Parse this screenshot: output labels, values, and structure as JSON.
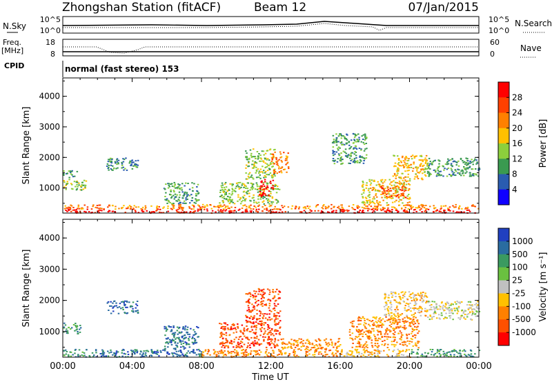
{
  "header": {
    "title": "Zhongshan Station (fitACF)",
    "beam": "Beam 12",
    "date": "07/Jan/2015"
  },
  "panels": {
    "nsky_label": "N.Sky",
    "nsearch_label": "N.Search",
    "freq_label_1": "Freq.",
    "freq_label_2": "[MHz]",
    "nave_label": "Nave",
    "cpid_label": "CPID",
    "cpid_text": "normal (fast stereo) 153",
    "nsky_ticks": [
      "10^5",
      "10^0"
    ],
    "nsearch_ticks": [
      "10^5",
      "10^0"
    ],
    "freq_ticks": [
      "18",
      "8"
    ],
    "nave_ticks": [
      "60",
      "0"
    ]
  },
  "colorbars": {
    "power": {
      "label": "Power [dB]",
      "ticks": [
        "28",
        "24",
        "20",
        "16",
        "12",
        "8",
        "4"
      ],
      "colors": [
        "#ff0000",
        "#ff4000",
        "#ff8000",
        "#ffc000",
        "#8ccf3c",
        "#3a9a50",
        "#2a5cb0",
        "#1000ff"
      ]
    },
    "velocity": {
      "label": "Velocity [m s⁻¹]",
      "ticks": [
        "1000",
        "500",
        "100",
        "25",
        "-25",
        "-100",
        "-500",
        "-1000"
      ],
      "colors": [
        "#2040c0",
        "#2a6ca0",
        "#3a9a60",
        "#6ac040",
        "#c0c0c0",
        "#ffc000",
        "#ff8000",
        "#ff5000",
        "#ff0000"
      ]
    }
  },
  "chart_data": [
    {
      "type": "heatmap",
      "name": "power",
      "ylabel": "Slant Range [km]",
      "xlabel": "Time UT",
      "x_ticks": [
        "00:00",
        "04:00",
        "08:00",
        "12:00",
        "16:00",
        "20:00",
        "00:00"
      ],
      "x_range_hours": [
        0,
        24
      ],
      "y_ticks": [
        1000,
        2000,
        3000,
        4000
      ],
      "y_range_km": [
        180,
        4600
      ],
      "regions": [
        {
          "t0": 0.0,
          "t1": 24.0,
          "r0": 200,
          "r1": 330,
          "level": 7
        },
        {
          "t0": 0.0,
          "t1": 24.0,
          "r0": 330,
          "r1": 480,
          "level": 5
        },
        {
          "t0": 0.0,
          "t1": 1.3,
          "r0": 950,
          "r1": 1300,
          "level": 3
        },
        {
          "t0": 0.0,
          "t1": 0.8,
          "r0": 1350,
          "r1": 1600,
          "level": 2
        },
        {
          "t0": 2.5,
          "t1": 4.3,
          "r0": 1600,
          "r1": 2000,
          "level": 2
        },
        {
          "t0": 5.8,
          "t1": 7.8,
          "r0": 500,
          "r1": 1200,
          "level": 2
        },
        {
          "t0": 9.0,
          "t1": 12.5,
          "r0": 500,
          "r1": 1200,
          "level": 3
        },
        {
          "t0": 10.5,
          "t1": 12.2,
          "r0": 1300,
          "r1": 2300,
          "level": 3
        },
        {
          "t0": 11.3,
          "t1": 12.1,
          "r0": 700,
          "r1": 1300,
          "level": 7
        },
        {
          "t0": 12.0,
          "t1": 13.0,
          "r0": 1500,
          "r1": 2200,
          "level": 5
        },
        {
          "t0": 17.2,
          "t1": 20.0,
          "r0": 500,
          "r1": 1300,
          "level": 4
        },
        {
          "t0": 18.3,
          "t1": 19.8,
          "r0": 700,
          "r1": 1100,
          "level": 6
        },
        {
          "t0": 19.0,
          "t1": 21.0,
          "r0": 1300,
          "r1": 2100,
          "level": 4
        },
        {
          "t0": 21.0,
          "t1": 24.0,
          "r0": 1400,
          "r1": 2000,
          "level": 2
        },
        {
          "t0": 15.5,
          "t1": 17.5,
          "r0": 1800,
          "r1": 2800,
          "level": 2
        }
      ]
    },
    {
      "type": "heatmap",
      "name": "velocity",
      "ylabel": "Slant Range [km]",
      "xlabel": "Time UT",
      "x_ticks": [
        "00:00",
        "04:00",
        "08:00",
        "12:00",
        "16:00",
        "20:00",
        "00:00"
      ],
      "x_range_hours": [
        0,
        24
      ],
      "y_ticks": [
        1000,
        2000,
        3000,
        4000
      ],
      "y_range_km": [
        180,
        4600
      ],
      "regions": [
        {
          "t0": 0.0,
          "t1": 1.5,
          "r0": 200,
          "r1": 450,
          "level": 2
        },
        {
          "t0": 1.5,
          "t1": 8.0,
          "r0": 200,
          "r1": 450,
          "level": 1
        },
        {
          "t0": 8.0,
          "t1": 16.0,
          "r0": 200,
          "r1": 450,
          "level": 6
        },
        {
          "t0": 16.0,
          "t1": 20.0,
          "r0": 200,
          "r1": 450,
          "level": 5
        },
        {
          "t0": 20.0,
          "t1": 24.0,
          "r0": 200,
          "r1": 450,
          "level": 2
        },
        {
          "t0": 5.8,
          "t1": 7.8,
          "r0": 450,
          "r1": 1200,
          "level": 1
        },
        {
          "t0": 2.5,
          "t1": 4.3,
          "r0": 1600,
          "r1": 2000,
          "level": 1
        },
        {
          "t0": 9.0,
          "t1": 12.5,
          "r0": 500,
          "r1": 1300,
          "level": 7
        },
        {
          "t0": 10.5,
          "t1": 12.5,
          "r0": 1300,
          "r1": 2400,
          "level": 7
        },
        {
          "t0": 12.5,
          "t1": 16.0,
          "r0": 450,
          "r1": 800,
          "level": 6
        },
        {
          "t0": 16.5,
          "t1": 20.5,
          "r0": 500,
          "r1": 1500,
          "level": 6
        },
        {
          "t0": 18.5,
          "t1": 21.0,
          "r0": 1500,
          "r1": 2300,
          "level": 5
        },
        {
          "t0": 21.0,
          "t1": 24.0,
          "r0": 1400,
          "r1": 2000,
          "level": 4
        },
        {
          "t0": 0.0,
          "t1": 1.0,
          "r0": 950,
          "r1": 1300,
          "level": 2
        }
      ]
    }
  ]
}
